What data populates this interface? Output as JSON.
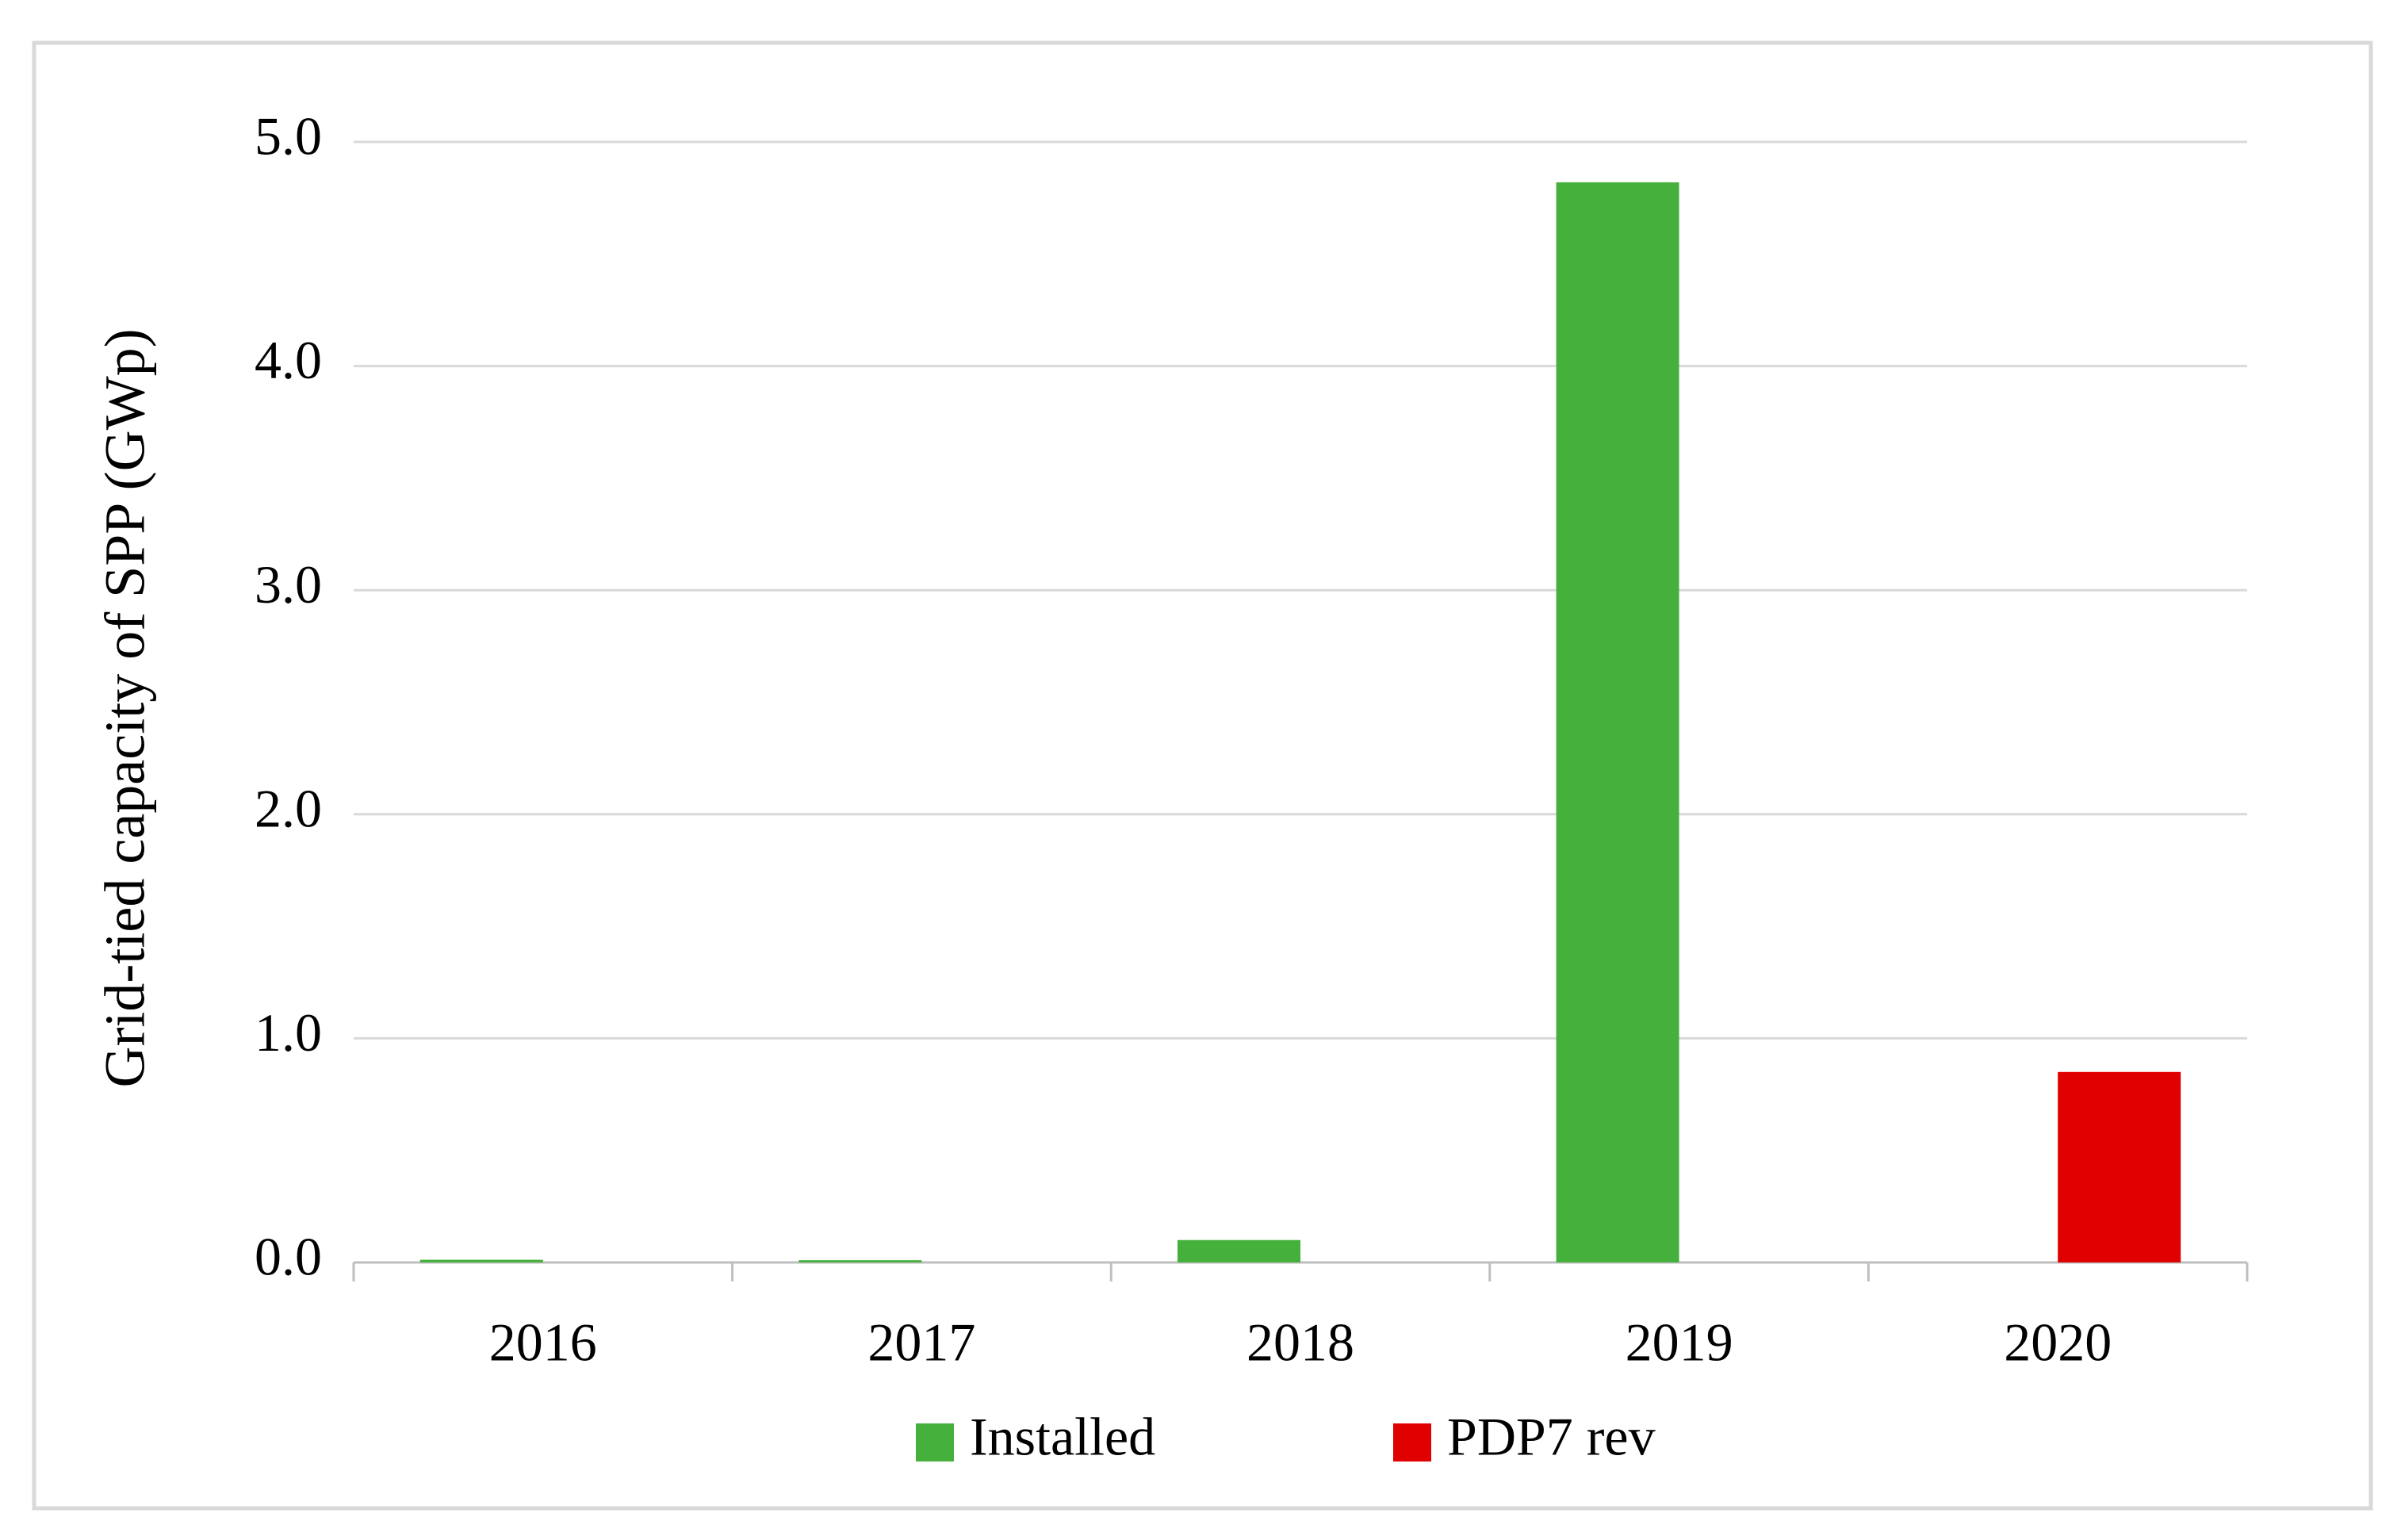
{
  "chart_data": {
    "type": "bar",
    "y_label": "Grid-tied capacity of SPP (GWp)",
    "categories": [
      "2016",
      "2017",
      "2018",
      "2019",
      "2020"
    ],
    "series": [
      {
        "name": "Installed",
        "color": "#45b03c",
        "values": [
          0.012,
          0.01,
          0.1,
          4.82,
          null
        ]
      },
      {
        "name": "PDP7 rev",
        "color": "#e00000",
        "values": [
          null,
          null,
          null,
          null,
          0.85
        ]
      }
    ],
    "ylim": [
      0,
      5
    ],
    "yticks": [
      {
        "value": 0,
        "label": "0.0"
      },
      {
        "value": 1,
        "label": "1.0"
      },
      {
        "value": 2,
        "label": "2.0"
      },
      {
        "value": 3,
        "label": "3.0"
      },
      {
        "value": 4,
        "label": "4.0"
      },
      {
        "value": 5,
        "label": "5.0"
      }
    ],
    "grid": true,
    "legend": "bottom"
  }
}
